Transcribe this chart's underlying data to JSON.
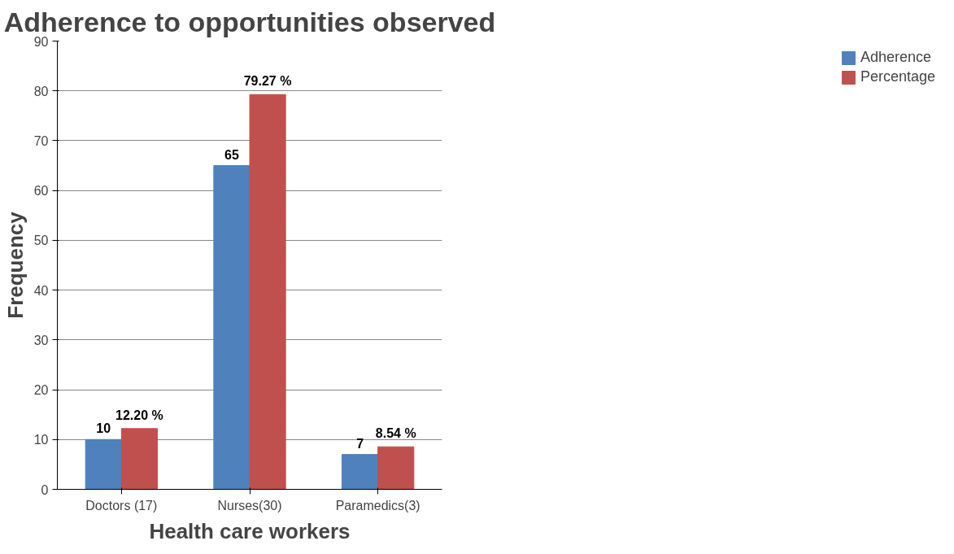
{
  "chart_data": {
    "type": "bar",
    "title": "Adherence to opportunities observed",
    "xlabel": "Health care workers",
    "ylabel": "Frequency",
    "categories": [
      "Doctors (17)",
      "Nurses(30)",
      "Paramedics(3)"
    ],
    "series": [
      {
        "name": "Adherence",
        "color": "#4f81bd",
        "values": [
          10,
          65,
          7
        ],
        "value_labels": [
          "10",
          "65",
          "7"
        ]
      },
      {
        "name": "Percentage",
        "color": "#c0504d",
        "values": [
          12.2,
          79.27,
          8.54
        ],
        "value_labels": [
          "12.20 %",
          "79.27 %",
          "8.54 %"
        ]
      }
    ],
    "ylim": [
      0,
      90
    ],
    "yticks": [
      0,
      10,
      20,
      30,
      40,
      50,
      60,
      70,
      80,
      90
    ],
    "grid": "y",
    "legend": "right"
  }
}
